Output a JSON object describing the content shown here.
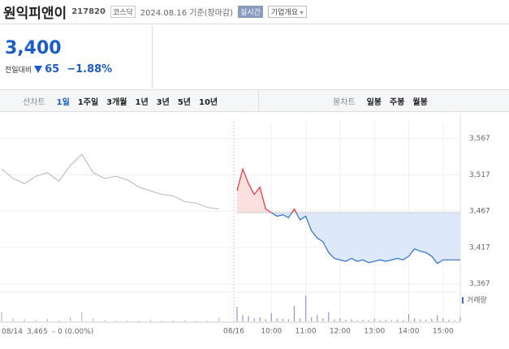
{
  "header": {
    "name": "원익피앤이",
    "code": "217820",
    "market": "코스닥",
    "date": "2024.08.16 기준(장마감)",
    "realtime": "실시간",
    "company": "기업개요"
  },
  "quote": {
    "price": "3,400",
    "change_label": "전일대비",
    "change": "65",
    "change_pct": "−1.88%"
  },
  "tabs": {
    "line_label": "선차트",
    "line_periods": [
      "1일",
      "1주일",
      "3개월",
      "1년",
      "3년",
      "5년",
      "10년"
    ],
    "candle_label": "봉차트",
    "candle_periods": [
      "일봉",
      "주봉",
      "월봉"
    ]
  },
  "chart_data": {
    "type": "line",
    "ylim": [
      3360,
      3590
    ],
    "yticks": [
      {
        "value": 3567,
        "label": "3,567"
      },
      {
        "value": 3517,
        "label": "3,517"
      },
      {
        "value": 3467,
        "label": "3,467"
      },
      {
        "value": 3417,
        "label": "3,417"
      },
      {
        "value": 3367,
        "label": "3,367"
      }
    ],
    "reference": {
      "value": 3465,
      "label": "3,465"
    },
    "status_date": "08/14",
    "status_change": "– 0 (0.00%)",
    "volume_label": "거래량",
    "xticks": [
      "08/16",
      "10:00",
      "11:00",
      "12:00",
      "13:00",
      "14:00",
      "15:00"
    ],
    "series": [
      {
        "color": "#b5b5b5",
        "x": [
          "09:00",
          "09:20",
          "09:40",
          "10:00",
          "10:20",
          "10:40",
          "11:00",
          "11:20",
          "11:40",
          "12:00",
          "12:20",
          "12:40",
          "13:00",
          "13:20",
          "13:40",
          "14:00",
          "14:20",
          "14:40",
          "15:00",
          "15:20"
        ],
        "values": [
          3525,
          3512,
          3505,
          3515,
          3520,
          3508,
          3530,
          3545,
          3520,
          3512,
          3515,
          3510,
          3500,
          3495,
          3490,
          3488,
          3480,
          3478,
          3472,
          3470
        ],
        "volume": [
          9000,
          3000,
          2000,
          1500,
          2500,
          1200,
          4000,
          9500,
          3000,
          1500,
          1000,
          1200,
          800,
          1500,
          700,
          900,
          1100,
          600,
          800,
          3500
        ]
      },
      {
        "color_up": "#e8323c",
        "color_down": "#2f6fd6",
        "fill_up": "#fbe0e0",
        "fill_down": "#dde9f8",
        "x": [
          "09:00",
          "09:10",
          "09:20",
          "09:30",
          "09:40",
          "09:50",
          "10:00",
          "10:10",
          "10:20",
          "10:30",
          "10:40",
          "10:50",
          "11:00",
          "11:10",
          "11:20",
          "11:30",
          "11:40",
          "11:50",
          "12:00",
          "12:10",
          "12:20",
          "12:30",
          "12:40",
          "12:50",
          "13:00",
          "13:10",
          "13:20",
          "13:30",
          "13:40",
          "13:50",
          "14:00",
          "14:10",
          "14:20",
          "14:30",
          "14:40",
          "14:50",
          "15:00",
          "15:10",
          "15:20",
          "15:30"
        ],
        "values": [
          3495,
          3525,
          3505,
          3490,
          3500,
          3470,
          3465,
          3460,
          3462,
          3458,
          3470,
          3455,
          3460,
          3440,
          3430,
          3425,
          3410,
          3402,
          3400,
          3398,
          3402,
          3398,
          3400,
          3396,
          3398,
          3400,
          3398,
          3400,
          3402,
          3400,
          3405,
          3415,
          3412,
          3410,
          3405,
          3395,
          3400,
          3400,
          3400,
          3400
        ],
        "volume": [
          14000,
          6000,
          5000,
          3000,
          4000,
          2000,
          8000,
          3000,
          2500,
          2000,
          15000,
          3000,
          25000,
          4000,
          6000,
          3000,
          9000,
          2000,
          3000,
          1500,
          2000,
          1000,
          1500,
          1200,
          2500,
          1000,
          1400,
          1000,
          1800,
          1200,
          7000,
          3000,
          2000,
          1500,
          2500,
          6000,
          3000,
          1500,
          1000,
          4000
        ]
      }
    ]
  }
}
